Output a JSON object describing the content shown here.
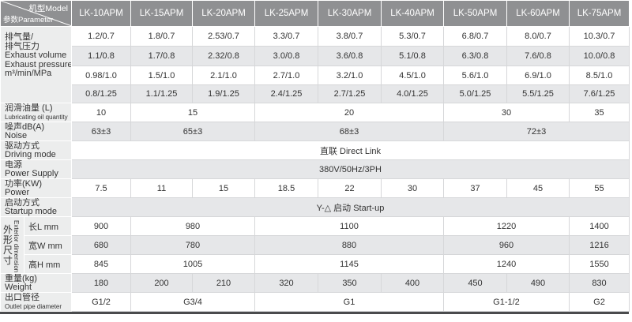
{
  "header": {
    "model_label": "机型Model",
    "param_label": "参数Parameter",
    "models": [
      "LK-10APM",
      "LK-15APM",
      "LK-20APM",
      "LK-25APM",
      "LK-30APM",
      "LK-40APM",
      "LK-50APM",
      "LK-60APM",
      "LK-75APM"
    ]
  },
  "exhaust": {
    "label_lines": [
      "排气量/",
      "排气压力",
      "Exhaust volume",
      "Exhaust pressure",
      "m³/min/MPa"
    ],
    "rows": [
      [
        "1.2/0.7",
        "1.8/0.7",
        "2.53/0.7",
        "3.3/0.7",
        "3.8/0.7",
        "5.3/0.7",
        "6.8/0.7",
        "8.0/0.7",
        "10.3/0.7"
      ],
      [
        "1.1/0.8",
        "1.7/0.8",
        "2.32/0.8",
        "3.0/0.8",
        "3.6/0.8",
        "5.1/0.8",
        "6.3/0.8",
        "7.6/0.8",
        "10.0/0.8"
      ],
      [
        "0.98/1.0",
        "1.5/1.0",
        "2.1/1.0",
        "2.7/1.0",
        "3.2/1.0",
        "4.5/1.0",
        "5.6/1.0",
        "6.9/1.0",
        "8.5/1.0"
      ],
      [
        "0.8/1.25",
        "1.1/1.25",
        "1.9/1.25",
        "2.4/1.25",
        "2.7/1.25",
        "4.0/1.25",
        "5.0/1.25",
        "5.5/1.25",
        "7.6/1.25"
      ]
    ]
  },
  "rows": [
    {
      "cn": "润滑油量 (L)",
      "en": "Lubricating oil quantity",
      "small": true,
      "cells": [
        {
          "v": "10",
          "span": 1
        },
        {
          "v": "15",
          "span": 2
        },
        {
          "v": "20",
          "span": 3
        },
        {
          "v": "30",
          "span": 2
        },
        {
          "v": "35",
          "span": 1
        }
      ]
    },
    {
      "cn": "噪声dB(A)",
      "en": "Noise",
      "cells": [
        {
          "v": "63±3",
          "span": 1
        },
        {
          "v": "65±3",
          "span": 2
        },
        {
          "v": "68±3",
          "span": 3
        },
        {
          "v": "72±3",
          "span": 3
        }
      ]
    },
    {
      "cn": "驱动方式",
      "en": "Driving mode",
      "cells": [
        {
          "v": "直联  Direct Link",
          "span": 9
        }
      ]
    },
    {
      "cn": "电源",
      "en": "Power Supply",
      "cells": [
        {
          "v": "380V/50Hz/3PH",
          "span": 9
        }
      ]
    },
    {
      "cn": "功率(KW)",
      "en": "Power",
      "cells": [
        {
          "v": "7.5",
          "span": 1
        },
        {
          "v": "11",
          "span": 1
        },
        {
          "v": "15",
          "span": 1
        },
        {
          "v": "18.5",
          "span": 1
        },
        {
          "v": "22",
          "span": 1
        },
        {
          "v": "30",
          "span": 1
        },
        {
          "v": "37",
          "span": 1
        },
        {
          "v": "45",
          "span": 1
        },
        {
          "v": "55",
          "span": 1
        }
      ]
    },
    {
      "cn": "启动方式",
      "en": "Startup mode",
      "cells": [
        {
          "v": "Y-△ 启动 Start-up",
          "span": 9
        }
      ]
    }
  ],
  "dimension": {
    "cn": "外形尺寸",
    "en": "Exterior dimension",
    "rows": [
      {
        "label": "长L   mm",
        "cells": [
          {
            "v": "900",
            "span": 1
          },
          {
            "v": "980",
            "span": 2
          },
          {
            "v": "1100",
            "span": 3
          },
          {
            "v": "1220",
            "span": 2
          },
          {
            "v": "1400",
            "span": 1
          }
        ]
      },
      {
        "label": "宽W mm",
        "cells": [
          {
            "v": "680",
            "span": 1
          },
          {
            "v": "780",
            "span": 2
          },
          {
            "v": "880",
            "span": 3
          },
          {
            "v": "960",
            "span": 2
          },
          {
            "v": "1216",
            "span": 1
          }
        ]
      },
      {
        "label": "高H mm",
        "cells": [
          {
            "v": "845",
            "span": 1
          },
          {
            "v": "1005",
            "span": 2
          },
          {
            "v": "1145",
            "span": 3
          },
          {
            "v": "1240",
            "span": 2
          },
          {
            "v": "1550",
            "span": 1
          }
        ]
      }
    ]
  },
  "tail_rows": [
    {
      "cn": "重量(kg)",
      "en": "Weight",
      "cells": [
        {
          "v": "180",
          "span": 1
        },
        {
          "v": "200",
          "span": 1
        },
        {
          "v": "210",
          "span": 1
        },
        {
          "v": "320",
          "span": 1
        },
        {
          "v": "350",
          "span": 1
        },
        {
          "v": "400",
          "span": 1
        },
        {
          "v": "450",
          "span": 1
        },
        {
          "v": "490",
          "span": 1
        },
        {
          "v": "830",
          "span": 1
        }
      ]
    },
    {
      "cn": "出口管径",
      "en": "Outlet pipe diameter",
      "small": true,
      "cells": [
        {
          "v": "G1/2",
          "span": 1
        },
        {
          "v": "G3/4",
          "span": 2
        },
        {
          "v": "G1",
          "span": 3
        },
        {
          "v": "G1-1/2",
          "span": 2
        },
        {
          "v": "G2",
          "span": 1
        }
      ]
    }
  ]
}
